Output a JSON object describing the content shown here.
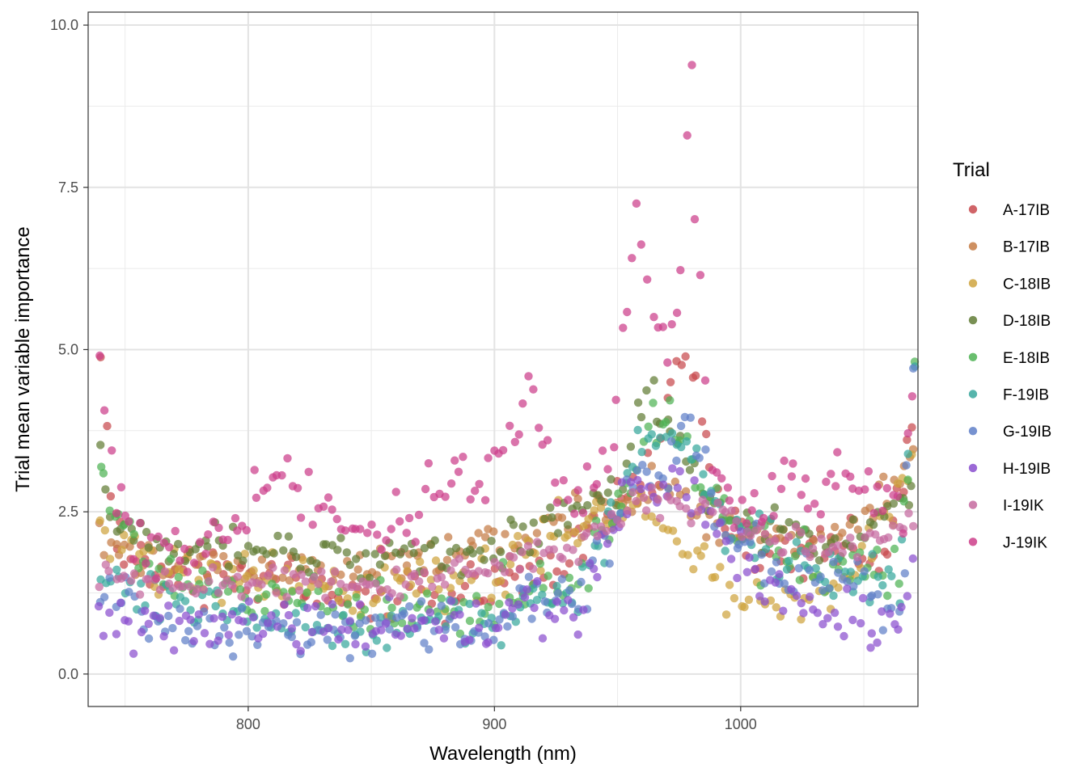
{
  "colors": {
    "A-17IB": "#c8494d",
    "B-17IB": "#c57c45",
    "C-18IB": "#cfa43f",
    "D-18IB": "#627d36",
    "E-18IB": "#4fb355",
    "F-19IB": "#38a79c",
    "G-19IB": "#5f7fc8",
    "H-19IB": "#8a4fcf",
    "I-19IK": "#c56a9f",
    "J-19IK": "#cc3e8a"
  },
  "chart_data": {
    "type": "scatter",
    "title": "",
    "xlabel": "Wavelength (nm)",
    "ylabel": "Trial mean variable importance",
    "xlim": [
      735,
      1072
    ],
    "ylim": [
      -0.5,
      10.2
    ],
    "x_ticks": [
      800,
      900,
      1000
    ],
    "x_tick_labels": [
      "800",
      "900",
      "1000"
    ],
    "y_ticks": [
      0,
      2.5,
      5,
      7.5,
      10
    ],
    "y_tick_labels": [
      "0.0",
      "2.5",
      "5.0",
      "7.5",
      "10.0"
    ],
    "grid": true,
    "legend": {
      "title": "Trial",
      "position": "right"
    },
    "x_range": [
      740,
      1070
    ],
    "x_step": 2,
    "series": [
      {
        "name": "A-17IB",
        "anchors": [
          [
            740,
            4.5
          ],
          [
            746,
            2.1
          ],
          [
            760,
            1.6
          ],
          [
            800,
            1.5
          ],
          [
            850,
            1.2
          ],
          [
            900,
            1.4
          ],
          [
            930,
            1.8
          ],
          [
            950,
            2.8
          ],
          [
            965,
            2.9
          ],
          [
            972,
            4.6
          ],
          [
            980,
            4.9
          ],
          [
            992,
            2.5
          ],
          [
            1010,
            1.9
          ],
          [
            1040,
            1.8
          ],
          [
            1060,
            1.9
          ],
          [
            1070,
            3.8
          ]
        ],
        "spread": 0.45
      },
      {
        "name": "B-17IB",
        "anchors": [
          [
            740,
            2.2
          ],
          [
            760,
            1.8
          ],
          [
            800,
            1.6
          ],
          [
            850,
            1.7
          ],
          [
            900,
            2.0
          ],
          [
            930,
            2.4
          ],
          [
            950,
            2.7
          ],
          [
            970,
            2.9
          ],
          [
            980,
            2.5
          ],
          [
            1000,
            2.2
          ],
          [
            1040,
            2.0
          ],
          [
            1070,
            3.3
          ]
        ],
        "spread": 0.3
      },
      {
        "name": "C-18IB",
        "anchors": [
          [
            740,
            2.4
          ],
          [
            760,
            1.6
          ],
          [
            800,
            1.4
          ],
          [
            850,
            1.3
          ],
          [
            900,
            1.5
          ],
          [
            930,
            2.3
          ],
          [
            950,
            2.6
          ],
          [
            970,
            2.3
          ],
          [
            985,
            1.8
          ],
          [
            995,
            1.3
          ],
          [
            1010,
            1.0
          ],
          [
            1040,
            1.4
          ],
          [
            1070,
            3.2
          ]
        ],
        "spread": 0.35
      },
      {
        "name": "D-18IB",
        "anchors": [
          [
            740,
            3.4
          ],
          [
            744,
            2.3
          ],
          [
            760,
            2.0
          ],
          [
            800,
            1.9
          ],
          [
            850,
            1.8
          ],
          [
            900,
            2.0
          ],
          [
            930,
            2.3
          ],
          [
            950,
            2.8
          ],
          [
            962,
            4.4
          ],
          [
            972,
            3.6
          ],
          [
            985,
            2.8
          ],
          [
            1000,
            2.3
          ],
          [
            1040,
            2.0
          ],
          [
            1070,
            2.9
          ]
        ],
        "spread": 0.28
      },
      {
        "name": "E-18IB",
        "anchors": [
          [
            740,
            3.3
          ],
          [
            744,
            2.7
          ],
          [
            760,
            1.5
          ],
          [
            800,
            1.2
          ],
          [
            850,
            1.0
          ],
          [
            900,
            1.1
          ],
          [
            935,
            1.5
          ],
          [
            955,
            3.0
          ],
          [
            965,
            4.0
          ],
          [
            978,
            3.4
          ],
          [
            990,
            2.6
          ],
          [
            1010,
            1.9
          ],
          [
            1040,
            1.6
          ],
          [
            1065,
            1.5
          ],
          [
            1070,
            4.9
          ]
        ],
        "spread": 0.4
      },
      {
        "name": "F-19IB",
        "anchors": [
          [
            740,
            1.5
          ],
          [
            760,
            1.1
          ],
          [
            800,
            0.9
          ],
          [
            850,
            0.7
          ],
          [
            900,
            0.8
          ],
          [
            935,
            1.3
          ],
          [
            955,
            3.0
          ],
          [
            965,
            3.6
          ],
          [
            980,
            3.2
          ],
          [
            995,
            2.4
          ],
          [
            1010,
            1.9
          ],
          [
            1040,
            1.5
          ],
          [
            1065,
            1.3
          ],
          [
            1070,
            4.8
          ]
        ],
        "spread": 0.4
      },
      {
        "name": "G-19IB",
        "anchors": [
          [
            740,
            1.3
          ],
          [
            760,
            0.8
          ],
          [
            800,
            0.7
          ],
          [
            850,
            0.7
          ],
          [
            900,
            0.8
          ],
          [
            935,
            1.3
          ],
          [
            955,
            2.9
          ],
          [
            970,
            3.2
          ],
          [
            978,
            3.9
          ],
          [
            990,
            2.5
          ],
          [
            1010,
            1.6
          ],
          [
            1040,
            1.4
          ],
          [
            1065,
            1.1
          ],
          [
            1070,
            4.7
          ]
        ],
        "spread": 0.4
      },
      {
        "name": "H-19IB",
        "anchors": [
          [
            740,
            0.7
          ],
          [
            760,
            0.8
          ],
          [
            800,
            0.8
          ],
          [
            850,
            0.7
          ],
          [
            900,
            0.8
          ],
          [
            935,
            1.1
          ],
          [
            955,
            2.7
          ],
          [
            975,
            3.1
          ],
          [
            990,
            2.2
          ],
          [
            1010,
            1.3
          ],
          [
            1030,
            1.0
          ],
          [
            1050,
            0.8
          ],
          [
            1065,
            0.7
          ],
          [
            1070,
            1.6
          ]
        ],
        "spread": 0.4
      },
      {
        "name": "I-19IK",
        "anchors": [
          [
            740,
            1.5
          ],
          [
            760,
            1.4
          ],
          [
            800,
            1.4
          ],
          [
            850,
            1.4
          ],
          [
            900,
            1.6
          ],
          [
            935,
            2.0
          ],
          [
            955,
            2.6
          ],
          [
            975,
            2.6
          ],
          [
            990,
            2.5
          ],
          [
            1010,
            2.1
          ],
          [
            1040,
            1.9
          ],
          [
            1070,
            2.4
          ]
        ],
        "spread": 0.2
      },
      {
        "name": "J-19IK",
        "anchors": [
          [
            740,
            4.6
          ],
          [
            743,
            3.8
          ],
          [
            746,
            2.6
          ],
          [
            760,
            1.9
          ],
          [
            780,
            1.8
          ],
          [
            800,
            2.6
          ],
          [
            815,
            3.2
          ],
          [
            825,
            2.7
          ],
          [
            840,
            2.1
          ],
          [
            860,
            2.3
          ],
          [
            880,
            2.8
          ],
          [
            895,
            3.4
          ],
          [
            905,
            3.5
          ],
          [
            915,
            4.4
          ],
          [
            925,
            2.8
          ],
          [
            945,
            3.0
          ],
          [
            952,
            4.9
          ],
          [
            958,
            7.0
          ],
          [
            965,
            5.5
          ],
          [
            972,
            5.0
          ],
          [
            977,
            6.5
          ],
          [
            979,
            9.7
          ],
          [
            983,
            6.8
          ],
          [
            988,
            3.4
          ],
          [
            1000,
            2.7
          ],
          [
            1025,
            2.9
          ],
          [
            1055,
            2.8
          ],
          [
            1066,
            2.4
          ],
          [
            1070,
            4.1
          ]
        ],
        "spread": 0.45
      }
    ]
  }
}
